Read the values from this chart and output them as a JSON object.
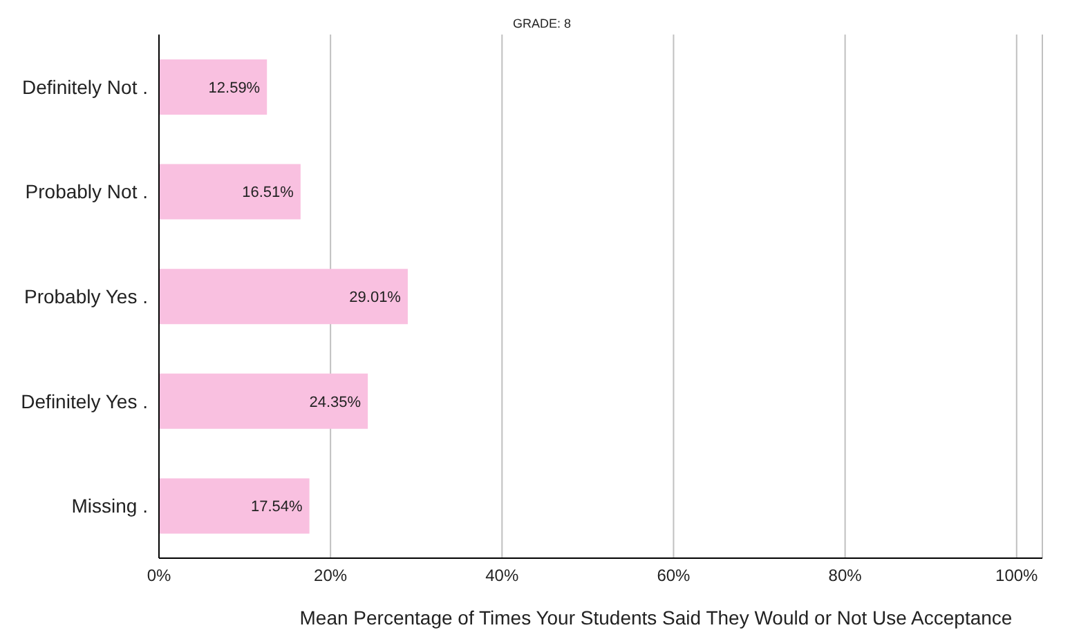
{
  "chart_data": {
    "type": "bar",
    "orientation": "horizontal",
    "title": "GRADE: 8",
    "xlabel": "Mean Percentage of Times Your Students Said They Would or Not Use Acceptance",
    "categories": [
      "Definitely Not .",
      "Probably Not .",
      "Probably Yes .",
      "Definitely Yes .",
      "Missing ."
    ],
    "values": [
      12.59,
      16.51,
      29.01,
      24.35,
      17.54
    ],
    "value_labels": [
      "12.59%",
      "16.51%",
      "29.01%",
      "24.35%",
      "17.54%"
    ],
    "color": "#f9c0e0",
    "xlim": [
      0,
      103
    ],
    "xticks": [
      {
        "value": 0,
        "label": "0%"
      },
      {
        "value": 20,
        "label": "20%"
      },
      {
        "value": 40,
        "label": "40%"
      },
      {
        "value": 60,
        "label": "60%"
      },
      {
        "value": 80,
        "label": "80%"
      },
      {
        "value": 100,
        "label": "100%"
      }
    ],
    "grid": "x",
    "legend": false
  }
}
